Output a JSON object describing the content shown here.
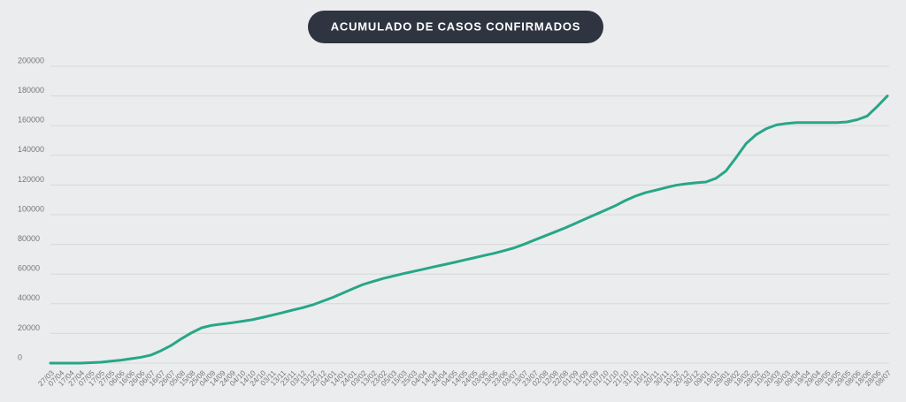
{
  "chart_data": {
    "type": "line",
    "title": "ACUMULADO DE CASOS CONFIRMADOS",
    "categories": [
      "27/03",
      "07/04",
      "17/04",
      "27/04",
      "07/05",
      "17/05",
      "27/05",
      "06/06",
      "16/06",
      "26/06",
      "06/07",
      "16/07",
      "26/07",
      "05/08",
      "15/08",
      "25/08",
      "04/09",
      "14/09",
      "24/09",
      "04/10",
      "14/10",
      "24/10",
      "03/11",
      "13/11",
      "23/11",
      "03/12",
      "13/12",
      "23/12",
      "04/01",
      "14/01",
      "24/01",
      "03/02",
      "13/02",
      "23/02",
      "05/03",
      "15/03",
      "25/03",
      "04/04",
      "14/04",
      "24/04",
      "04/05",
      "14/05",
      "24/05",
      "03/06",
      "13/06",
      "23/06",
      "03/07",
      "13/07",
      "23/07",
      "02/08",
      "12/08",
      "22/08",
      "01/09",
      "11/09",
      "21/09",
      "01/10",
      "11/10",
      "21/10",
      "31/10",
      "10/11",
      "20/11",
      "30/11",
      "10/12",
      "20/12",
      "30/12",
      "09/01",
      "19/01",
      "29/01",
      "08/02",
      "18/02",
      "28/02",
      "10/03",
      "20/03",
      "30/03",
      "09/04",
      "19/04",
      "29/04",
      "09/05",
      "19/05",
      "29/05",
      "08/06",
      "18/06",
      "28/06",
      "08/07"
    ],
    "values": [
      0,
      0,
      0,
      0,
      300,
      600,
      1300,
      2000,
      3000,
      4000,
      5500,
      8500,
      12000,
      16500,
      20500,
      23800,
      25500,
      26300,
      27200,
      28200,
      29200,
      30700,
      32300,
      34000,
      35700,
      37300,
      39200,
      41700,
      44300,
      47200,
      50200,
      53000,
      55000,
      57000,
      58700,
      60300,
      61800,
      63300,
      64800,
      66300,
      67800,
      69400,
      70900,
      72500,
      74000,
      75800,
      77700,
      80200,
      82900,
      85600,
      88300,
      91000,
      94000,
      97000,
      100000,
      103000,
      106000,
      109500,
      112500,
      114800,
      116500,
      118200,
      119800,
      120800,
      121500,
      122000,
      124500,
      129500,
      138500,
      148000,
      154000,
      158000,
      160500,
      161500,
      162000,
      162000,
      162000,
      162000,
      162000,
      162500,
      164000,
      166500,
      173000,
      180000
    ],
    "color": "#27a688",
    "ylim": [
      0,
      200000
    ],
    "yticks": [
      0,
      20000,
      40000,
      60000,
      80000,
      100000,
      120000,
      140000,
      160000,
      180000,
      200000
    ],
    "grid": true
  }
}
